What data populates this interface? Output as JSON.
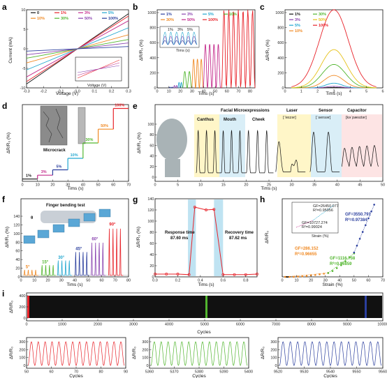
{
  "panels": {
    "a": {
      "letter": "a",
      "xlabel": "Voltage (V)",
      "ylabel": "Current (mA)",
      "legend": [
        "0",
        "1%",
        "3%",
        "5%",
        "10%",
        "30%",
        "50%",
        "100%"
      ],
      "inset_legend": [
        "1",
        "5%",
        "10%",
        "100%"
      ],
      "inset_xlabel": "Voltage (V)",
      "inset_ylabel": "Current (mA)"
    },
    "b": {
      "letter": "b",
      "xlabel": "Tims (s)",
      "ylabel": "ΔR/R₀ (%)",
      "legend": [
        "1%",
        "3%",
        "5%",
        "10%",
        "30%",
        "50%",
        "100%"
      ],
      "inset_xlabel": "Tims (s)",
      "inset_ylabel": "ΔR/R₀",
      "inset_labels": [
        "1%",
        "3%",
        "5%"
      ]
    },
    "c": {
      "letter": "c",
      "xlabel": "Tims (s)",
      "ylabel": "ΔR/R₀ (%)",
      "legend": [
        "1%",
        "3%",
        "5%",
        "10%",
        "30%",
        "50%",
        "100%"
      ]
    },
    "d": {
      "letter": "d",
      "xlabel": "Tims (s)",
      "ylabel": "ΔR/R₀ (%)",
      "microcrack": "Microcrack",
      "step_labels": [
        "1%",
        "3%",
        "5%",
        "10%",
        "30%",
        "50%",
        "100%"
      ]
    },
    "e": {
      "letter": "e",
      "xlabel": "Tims (s)",
      "ylabel": "ΔR/R₀ (%)",
      "groups": {
        "facial": "Facial Microexpressions",
        "canthus": "Canthus",
        "mouth": "Mouth",
        "cheek": "Cheek",
        "laser": "Laser",
        "laser_ipa": "[ˈleɪzər]",
        "sensor": "Sensor",
        "sensor_ipa": "[ˈsensər]",
        "capacitor": "Capacitor",
        "capacitor_ipa": "[kəˈpæsɪtər]"
      }
    },
    "f": {
      "letter": "f",
      "title": "Finger bending test",
      "theta": "θ",
      "xlabel": "Tims (s)",
      "ylabel": "ΔR/R₀ (%)",
      "angles": [
        "5°",
        "15°",
        "30°",
        "45°",
        "60°",
        "90°"
      ]
    },
    "g": {
      "letter": "g",
      "xlabel": "Tims (s)",
      "ylabel": "ΔR/R₀ (%)",
      "response_label": "Response time",
      "response_value": "87.60 ms",
      "recovery_label": "Recovery time",
      "recovery_value": "87.62 ms"
    },
    "h": {
      "letter": "h",
      "xlabel": "Strain (%)",
      "ylabel": "ΔR/R₀",
      "fits": [
        {
          "gf": "GF=286.152",
          "r2": "R²=0.96655"
        },
        {
          "gf": "GF=1116.738",
          "r2": "R²=0.96859"
        },
        {
          "gf": "GF=3550.791",
          "r2": "R²=0.97384"
        }
      ],
      "inset_fits": [
        {
          "gf": "GF=10727.274",
          "r2": "R²=0.99024"
        },
        {
          "gf": "GF=26450.077",
          "r2": "R²=0.95956"
        }
      ],
      "inset_xlabel": "Strain (%)",
      "inset_ylabel": "ΔR/R₀"
    },
    "i": {
      "letter": "i",
      "xlabel": "Cycles",
      "ylabel": "ΔR/R₀"
    }
  },
  "colors": {
    "red": "#e8232a",
    "green": "#52b62f",
    "blue": "#2b3f9e",
    "orange": "#f08a25",
    "magenta": "#c42b8c",
    "cyan": "#22a7d0",
    "purple": "#8a44b0",
    "black": "#111111",
    "yellow": "#e6c21a"
  },
  "chart_data": [
    {
      "type": "line",
      "panel": "a",
      "x_range": [
        -0.3,
        0.3
      ],
      "ylim": [
        -10,
        10
      ],
      "xticks": [
        "-0.3",
        "-0.2",
        "-0.1",
        "0.0",
        "0.1",
        "0.2",
        "0.3"
      ],
      "yticks": [
        "-10",
        "-5",
        "0",
        "5",
        "10"
      ],
      "series": [
        {
          "name": "0",
          "slope": 30
        },
        {
          "name": "1%",
          "slope": 28
        },
        {
          "name": "3%",
          "slope": 24
        },
        {
          "name": "5%",
          "slope": 18
        },
        {
          "name": "10%",
          "slope": 12
        },
        {
          "name": "30%",
          "slope": 8
        },
        {
          "name": "50%",
          "slope": 5
        },
        {
          "name": "100%",
          "slope": 2
        }
      ]
    },
    {
      "type": "line",
      "panel": "b",
      "xlim": [
        0,
        85
      ],
      "ylim": [
        0,
        1000
      ],
      "xticks": [
        "0",
        "10",
        "20",
        "30",
        "40",
        "50",
        "60",
        "70",
        "80"
      ],
      "yticks": [
        "0",
        "200",
        "400",
        "600",
        "800",
        "1000"
      ],
      "segments": [
        {
          "name": "1%",
          "start": 10,
          "end": 14,
          "amp": 10
        },
        {
          "name": "3%",
          "start": 14,
          "end": 18,
          "amp": 30
        },
        {
          "name": "5%",
          "start": 18,
          "end": 22,
          "amp": 70
        },
        {
          "name": "10%",
          "start": 22,
          "end": 30,
          "amp": 210
        },
        {
          "name": "30%",
          "start": 30,
          "end": 40,
          "amp": 370
        },
        {
          "name": "50%",
          "start": 40,
          "end": 55,
          "amp": 560
        },
        {
          "name": "100%",
          "start": 56,
          "end": 85,
          "amp": 1000
        }
      ],
      "inset": {
        "xticks": [
          "0",
          "1",
          "2",
          "3",
          "4",
          "5",
          "6",
          "7",
          "8",
          "9"
        ],
        "yticks": [
          "0",
          "10",
          "20"
        ]
      }
    },
    {
      "type": "line",
      "panel": "c",
      "xlim": [
        0,
        6
      ],
      "ylim": [
        0,
        1000
      ],
      "xticks": [
        "0",
        "1",
        "2",
        "3",
        "4",
        "5",
        "6"
      ],
      "yticks": [
        "0",
        "200",
        "400",
        "600",
        "800",
        "1000"
      ],
      "series": [
        {
          "name": "1%",
          "peak": 5
        },
        {
          "name": "3%",
          "peak": 20
        },
        {
          "name": "5%",
          "peak": 60
        },
        {
          "name": "10%",
          "peak": 160
        },
        {
          "name": "30%",
          "peak": 300
        },
        {
          "name": "50%",
          "peak": 490
        },
        {
          "name": "100%",
          "peak": 1000
        }
      ]
    },
    {
      "type": "line",
      "panel": "d",
      "xlim": [
        0,
        70
      ],
      "xticks": [
        "0",
        "10",
        "20",
        "30",
        "40",
        "50",
        "60",
        "70"
      ],
      "steps": [
        {
          "name": "1%",
          "x0": 0,
          "x1": 10,
          "level": 0.03
        },
        {
          "name": "3%",
          "x0": 10,
          "x1": 20,
          "level": 0.08
        },
        {
          "name": "5%",
          "x0": 20,
          "x1": 30,
          "level": 0.15
        },
        {
          "name": "10%",
          "x0": 30,
          "x1": 40,
          "level": 0.3
        },
        {
          "name": "30%",
          "x0": 40,
          "x1": 50,
          "level": 0.5
        },
        {
          "name": "50%",
          "x0": 50,
          "x1": 60,
          "level": 0.68
        },
        {
          "name": "100%",
          "x0": 60,
          "x1": 70,
          "level": 0.95
        }
      ]
    },
    {
      "type": "line",
      "panel": "e",
      "xlim": [
        0,
        50
      ],
      "ylim": [
        0,
        100
      ],
      "xticks": [
        "0",
        "5",
        "10",
        "15",
        "20",
        "25",
        "30",
        "35",
        "40",
        "45",
        "50"
      ],
      "yticks": [
        "0",
        "20",
        "40",
        "60",
        "80",
        "100"
      ]
    },
    {
      "type": "line",
      "panel": "f",
      "xlim": [
        0,
        80
      ],
      "ylim": [
        0,
        140
      ],
      "xticks": [
        "0",
        "10",
        "20",
        "30",
        "40",
        "50",
        "60",
        "70",
        "80"
      ],
      "yticks": [
        "0",
        "20",
        "40",
        "60",
        "80",
        "100",
        "120",
        "140"
      ],
      "bursts": [
        {
          "name": "5°",
          "start": 2,
          "amp": 12
        },
        {
          "name": "15°",
          "start": 15,
          "amp": 22
        },
        {
          "name": "30°",
          "start": 27,
          "amp": 32
        },
        {
          "name": "45°",
          "start": 40,
          "amp": 50
        },
        {
          "name": "60°",
          "start": 52,
          "amp": 70
        },
        {
          "name": "90°",
          "start": 65,
          "amp": 100
        }
      ]
    },
    {
      "type": "line",
      "panel": "g",
      "xlim": [
        0,
        0.9
      ],
      "ylim": [
        0,
        140
      ],
      "xticks": [
        "0.0",
        "0.2",
        "0.4",
        "0.6",
        "0.8"
      ],
      "yticks": [
        "0",
        "20",
        "40",
        "60",
        "80",
        "100",
        "120",
        "140"
      ],
      "x": [
        0,
        0.1,
        0.2,
        0.3,
        0.35,
        0.45,
        0.52,
        0.6,
        0.7,
        0.8,
        0.9
      ],
      "y": [
        5,
        5,
        5,
        4,
        125,
        120,
        121,
        4,
        4,
        4,
        5
      ]
    },
    {
      "type": "scatter",
      "panel": "h",
      "xlim": [
        0,
        70
      ],
      "ylim": [
        0,
        800
      ],
      "xticks": [
        "0",
        "10",
        "20",
        "30",
        "40",
        "50",
        "60",
        "70"
      ],
      "yticks": [
        "0",
        "200",
        "400",
        "600",
        "800"
      ],
      "series": [
        {
          "name": "GF=286.152",
          "x": [
            2,
            5,
            8,
            11,
            14,
            17,
            20,
            23,
            26,
            29,
            32
          ],
          "y": [
            0,
            0,
            0,
            3,
            6,
            10,
            15,
            20,
            26,
            33,
            40
          ]
        },
        {
          "name": "GF=1116.738",
          "x": [
            32,
            35,
            38,
            41,
            44,
            47,
            50
          ],
          "y": [
            40,
            60,
            90,
            120,
            160,
            200,
            240
          ]
        },
        {
          "name": "GF=3550.791",
          "x": [
            50,
            52,
            54,
            56,
            58,
            60,
            62,
            64
          ],
          "y": [
            250,
            320,
            390,
            460,
            530,
            600,
            670,
            740
          ]
        }
      ],
      "inset": {
        "xticks": [
          "20",
          "40",
          "60",
          "80"
        ],
        "yticks": [
          "0",
          "5000",
          "10000"
        ]
      }
    },
    {
      "type": "line",
      "panel": "i",
      "xlim": [
        0,
        10000
      ],
      "ylim": [
        0,
        400
      ],
      "xticks": [
        "0",
        "1000",
        "2000",
        "3000",
        "4000",
        "5000",
        "6000",
        "7000",
        "8000",
        "9000",
        "10000"
      ],
      "yticks": [
        "0",
        "200",
        "400"
      ],
      "zooms": [
        {
          "range": [
            50,
            90
          ],
          "xticks": [
            "50",
            "60",
            "70",
            "80",
            "90"
          ],
          "yticks": [
            "0",
            "100",
            "200",
            "300"
          ]
        },
        {
          "range": [
            5360,
            5400
          ],
          "xticks": [
            "5360",
            "5370",
            "5380",
            "5390",
            "5400"
          ],
          "yticks": [
            "0",
            "100",
            "200",
            "300"
          ]
        },
        {
          "range": [
            9520,
            9560
          ],
          "xticks": [
            "9520",
            "9530",
            "9540",
            "9550",
            "9560"
          ],
          "yticks": [
            "0",
            "100",
            "200",
            "300"
          ]
        }
      ]
    }
  ]
}
